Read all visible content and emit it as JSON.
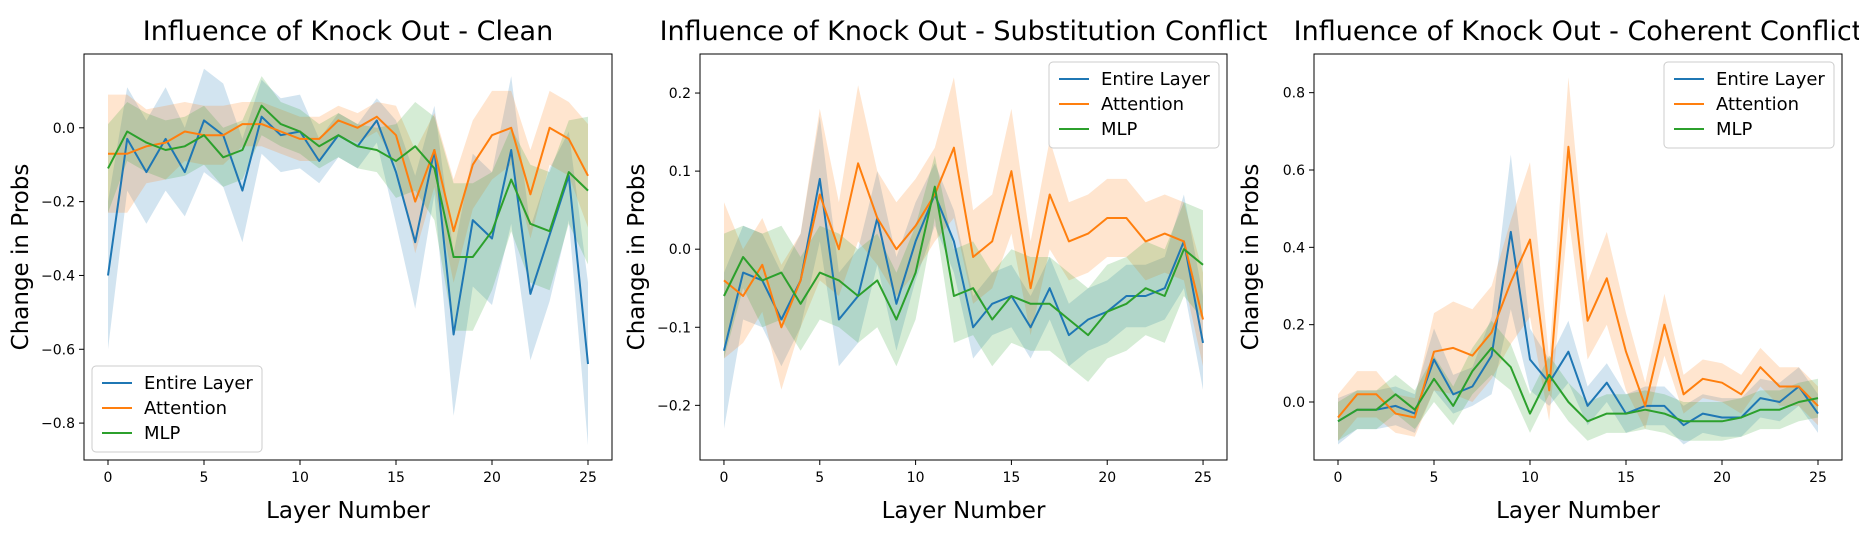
{
  "chart_data": [
    {
      "type": "line",
      "title": "Influence of Knock Out - Clean",
      "xlabel": "Layer Number",
      "ylabel": "Change in Probs",
      "xlim": [
        -1.25,
        26.25
      ],
      "ylim": [
        -0.9,
        0.2
      ],
      "xticks": [
        0,
        5,
        10,
        15,
        20,
        25
      ],
      "yticks": [
        -0.8,
        -0.6,
        -0.4,
        -0.2,
        0.0
      ],
      "ytick_labels": [
        "−0.8",
        "−0.6",
        "−0.4",
        "−0.2",
        "0.0"
      ],
      "legend": "bottom-left",
      "x": [
        0,
        1,
        2,
        3,
        4,
        5,
        6,
        7,
        8,
        9,
        10,
        11,
        12,
        13,
        14,
        15,
        16,
        17,
        18,
        19,
        20,
        21,
        22,
        23,
        24,
        25
      ],
      "series": [
        {
          "name": "Entire Layer",
          "color": "#1f77b4",
          "values": [
            -0.4,
            -0.03,
            -0.12,
            -0.03,
            -0.12,
            0.02,
            -0.02,
            -0.17,
            0.03,
            -0.02,
            -0.01,
            -0.09,
            -0.02,
            -0.05,
            0.02,
            -0.12,
            -0.31,
            -0.06,
            -0.56,
            -0.25,
            -0.3,
            -0.06,
            -0.45,
            -0.29,
            -0.13,
            -0.64
          ],
          "band": [
            0.2,
            0.14,
            0.14,
            0.14,
            0.12,
            0.14,
            0.14,
            0.14,
            0.1,
            0.1,
            0.1,
            0.06,
            0.06,
            0.06,
            0.06,
            0.14,
            0.18,
            0.12,
            0.22,
            0.18,
            0.18,
            0.2,
            0.18,
            0.18,
            0.12,
            0.22
          ]
        },
        {
          "name": "Attention",
          "color": "#ff7f0e",
          "values": [
            -0.07,
            -0.07,
            -0.05,
            -0.04,
            -0.01,
            -0.02,
            -0.02,
            0.01,
            0.01,
            -0.01,
            -0.03,
            -0.03,
            0.02,
            0.0,
            0.03,
            -0.02,
            -0.2,
            -0.06,
            -0.28,
            -0.1,
            -0.02,
            0.0,
            -0.18,
            0.0,
            -0.03,
            -0.13
          ],
          "band": [
            0.16,
            0.16,
            0.1,
            0.1,
            0.08,
            0.08,
            0.08,
            0.06,
            0.06,
            0.06,
            0.06,
            0.06,
            0.04,
            0.04,
            0.04,
            0.08,
            0.14,
            0.1,
            0.14,
            0.12,
            0.12,
            0.1,
            0.12,
            0.1,
            0.1,
            0.14
          ]
        },
        {
          "name": "MLP",
          "color": "#2ca02c",
          "values": [
            -0.11,
            -0.01,
            -0.04,
            -0.06,
            -0.05,
            -0.02,
            -0.08,
            -0.06,
            0.06,
            0.01,
            -0.01,
            -0.05,
            -0.02,
            -0.05,
            -0.06,
            -0.09,
            -0.05,
            -0.11,
            -0.35,
            -0.35,
            -0.28,
            -0.14,
            -0.26,
            -0.28,
            -0.12,
            -0.17
          ],
          "band": [
            0.12,
            0.08,
            0.08,
            0.08,
            0.08,
            0.08,
            0.08,
            0.08,
            0.08,
            0.06,
            0.06,
            0.06,
            0.06,
            0.06,
            0.06,
            0.1,
            0.12,
            0.14,
            0.2,
            0.2,
            0.16,
            0.14,
            0.16,
            0.16,
            0.14,
            0.2
          ]
        }
      ]
    },
    {
      "type": "line",
      "title": "Influence of Knock Out - Substitution Conflict",
      "xlabel": "Layer Number",
      "ylabel": "Change in Probs",
      "xlim": [
        -1.25,
        26.25
      ],
      "ylim": [
        -0.27,
        0.25
      ],
      "xticks": [
        0,
        5,
        10,
        15,
        20,
        25
      ],
      "yticks": [
        -0.2,
        -0.1,
        0.0,
        0.1,
        0.2
      ],
      "ytick_labels": [
        "−0.2",
        "−0.1",
        "0.0",
        "0.1",
        "0.2"
      ],
      "legend": "top-right",
      "x": [
        0,
        1,
        2,
        3,
        4,
        5,
        6,
        7,
        8,
        9,
        10,
        11,
        12,
        13,
        14,
        15,
        16,
        17,
        18,
        19,
        20,
        21,
        22,
        23,
        24,
        25
      ],
      "series": [
        {
          "name": "Entire Layer",
          "color": "#1f77b4",
          "values": [
            -0.13,
            -0.03,
            -0.04,
            -0.09,
            -0.04,
            0.09,
            -0.09,
            -0.06,
            0.04,
            -0.07,
            0.01,
            0.07,
            0.01,
            -0.1,
            -0.07,
            -0.06,
            -0.1,
            -0.05,
            -0.11,
            -0.09,
            -0.08,
            -0.06,
            -0.06,
            -0.05,
            0.01,
            -0.12
          ],
          "band": [
            0.1,
            0.06,
            0.06,
            0.06,
            0.06,
            0.08,
            0.06,
            0.06,
            0.06,
            0.06,
            0.05,
            0.04,
            0.04,
            0.04,
            0.04,
            0.04,
            0.04,
            0.04,
            0.04,
            0.04,
            0.04,
            0.04,
            0.04,
            0.04,
            0.06,
            0.06
          ]
        },
        {
          "name": "Attention",
          "color": "#ff7f0e",
          "values": [
            -0.04,
            -0.06,
            -0.02,
            -0.1,
            -0.04,
            0.07,
            0.0,
            0.11,
            0.04,
            0.0,
            0.03,
            0.07,
            0.13,
            -0.01,
            0.01,
            0.1,
            -0.05,
            0.07,
            0.01,
            0.02,
            0.04,
            0.04,
            0.01,
            0.02,
            0.01,
            -0.09
          ],
          "band": [
            0.1,
            0.06,
            0.06,
            0.08,
            0.06,
            0.11,
            0.06,
            0.1,
            0.06,
            0.06,
            0.06,
            0.06,
            0.09,
            0.06,
            0.06,
            0.08,
            0.06,
            0.07,
            0.05,
            0.05,
            0.05,
            0.05,
            0.05,
            0.05,
            0.05,
            0.06
          ]
        },
        {
          "name": "MLP",
          "color": "#2ca02c",
          "values": [
            -0.06,
            -0.01,
            -0.04,
            -0.03,
            -0.07,
            -0.03,
            -0.04,
            -0.06,
            -0.04,
            -0.09,
            -0.03,
            0.08,
            -0.06,
            -0.05,
            -0.09,
            -0.06,
            -0.07,
            -0.07,
            -0.09,
            -0.11,
            -0.08,
            -0.07,
            -0.05,
            -0.06,
            0.0,
            -0.02
          ],
          "band": [
            0.08,
            0.04,
            0.06,
            0.06,
            0.06,
            0.06,
            0.06,
            0.06,
            0.06,
            0.06,
            0.06,
            0.04,
            0.06,
            0.06,
            0.06,
            0.06,
            0.06,
            0.06,
            0.06,
            0.06,
            0.06,
            0.06,
            0.06,
            0.06,
            0.06,
            0.07
          ]
        }
      ]
    },
    {
      "type": "line",
      "title": "Influence of Knock Out - Coherent Conflict",
      "xlabel": "Layer Number",
      "ylabel": "Change in Probs",
      "xlim": [
        -1.25,
        26.25
      ],
      "ylim": [
        -0.15,
        0.9
      ],
      "xticks": [
        0,
        5,
        10,
        15,
        20,
        25
      ],
      "yticks": [
        0.0,
        0.2,
        0.4,
        0.6,
        0.8
      ],
      "ytick_labels": [
        "0.0",
        "0.2",
        "0.4",
        "0.6",
        "0.8"
      ],
      "legend": "top-right",
      "x": [
        0,
        1,
        2,
        3,
        4,
        5,
        6,
        7,
        8,
        9,
        10,
        11,
        12,
        13,
        14,
        15,
        16,
        17,
        18,
        19,
        20,
        21,
        22,
        23,
        24,
        25
      ],
      "series": [
        {
          "name": "Entire Layer",
          "color": "#1f77b4",
          "values": [
            -0.05,
            -0.02,
            -0.02,
            -0.01,
            -0.03,
            0.11,
            0.02,
            0.04,
            0.12,
            0.44,
            0.11,
            0.05,
            0.13,
            -0.01,
            0.05,
            -0.03,
            -0.01,
            -0.01,
            -0.06,
            -0.03,
            -0.04,
            -0.04,
            0.01,
            0.0,
            0.04,
            -0.03
          ],
          "band": [
            0.06,
            0.05,
            0.05,
            0.05,
            0.05,
            0.08,
            0.05,
            0.05,
            0.1,
            0.2,
            0.08,
            0.06,
            0.08,
            0.05,
            0.05,
            0.05,
            0.05,
            0.05,
            0.05,
            0.05,
            0.05,
            0.05,
            0.05,
            0.05,
            0.05,
            0.05
          ]
        },
        {
          "name": "Attention",
          "color": "#ff7f0e",
          "values": [
            -0.04,
            0.02,
            0.02,
            -0.03,
            -0.04,
            0.13,
            0.14,
            0.12,
            0.18,
            0.31,
            0.42,
            0.03,
            0.66,
            0.21,
            0.32,
            0.13,
            -0.01,
            0.2,
            0.02,
            0.06,
            0.05,
            0.02,
            0.09,
            0.04,
            0.04,
            -0.01
          ],
          "band": [
            0.06,
            0.06,
            0.06,
            0.05,
            0.05,
            0.1,
            0.12,
            0.12,
            0.12,
            0.16,
            0.2,
            0.08,
            0.18,
            0.1,
            0.12,
            0.1,
            0.06,
            0.08,
            0.05,
            0.05,
            0.05,
            0.05,
            0.05,
            0.05,
            0.05,
            0.05
          ]
        },
        {
          "name": "MLP",
          "color": "#2ca02c",
          "values": [
            -0.05,
            -0.02,
            -0.02,
            0.02,
            -0.02,
            0.06,
            -0.01,
            0.08,
            0.14,
            0.09,
            -0.03,
            0.07,
            0.0,
            -0.05,
            -0.03,
            -0.03,
            -0.02,
            -0.03,
            -0.05,
            -0.05,
            -0.05,
            -0.04,
            -0.02,
            -0.02,
            0.0,
            0.01
          ],
          "band": [
            0.05,
            0.05,
            0.05,
            0.05,
            0.05,
            0.06,
            0.05,
            0.06,
            0.07,
            0.06,
            0.05,
            0.05,
            0.05,
            0.05,
            0.05,
            0.05,
            0.05,
            0.05,
            0.05,
            0.05,
            0.05,
            0.05,
            0.05,
            0.05,
            0.05,
            0.05
          ]
        }
      ]
    }
  ]
}
